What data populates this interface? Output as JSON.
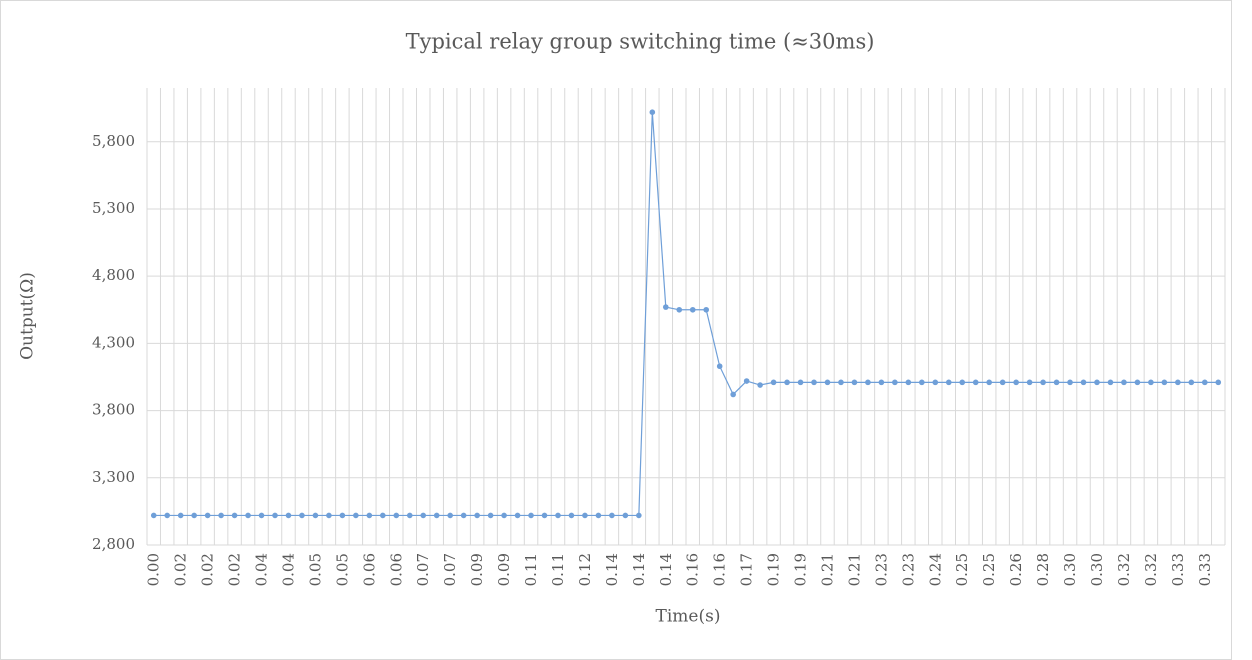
{
  "chart_data": {
    "type": "line",
    "title": "Typical relay group switching time (≈30ms)",
    "x_label": "Time(s)",
    "y_label": "Output(Ω)",
    "categories": [
      "0.00",
      null,
      "0.02",
      null,
      "0.02",
      null,
      "0.02",
      null,
      "0.04",
      null,
      "0.04",
      null,
      "0.05",
      null,
      "0.05",
      null,
      "0.06",
      null,
      "0.06",
      null,
      "0.07",
      null,
      "0.07",
      null,
      "0.09",
      null,
      "0.09",
      null,
      "0.11",
      null,
      "0.11",
      null,
      "0.12",
      null,
      "0.14",
      null,
      "0.14",
      null,
      "0.14",
      null,
      "0.16",
      null,
      "0.16",
      null,
      "0.17",
      null,
      "0.19",
      null,
      "0.19",
      null,
      "0.21",
      null,
      "0.21",
      null,
      "0.23",
      null,
      "0.23",
      null,
      "0.24",
      null,
      "0.25",
      null,
      "0.25",
      null,
      "0.26",
      null,
      "0.28",
      null,
      "0.30",
      null,
      "0.30",
      null,
      "0.32",
      null,
      "0.32",
      null,
      "0.33",
      null,
      "0.33",
      null
    ],
    "series": [
      {
        "name": "Output",
        "color": "#6f9fd8",
        "values": [
          3020,
          3020,
          3020,
          3020,
          3020,
          3020,
          3020,
          3020,
          3020,
          3020,
          3020,
          3020,
          3020,
          3020,
          3020,
          3020,
          3020,
          3020,
          3020,
          3020,
          3020,
          3020,
          3020,
          3020,
          3020,
          3020,
          3020,
          3020,
          3020,
          3020,
          3020,
          3020,
          3020,
          3020,
          3020,
          3020,
          3020,
          6020,
          4570,
          4550,
          4550,
          4550,
          4130,
          3920,
          4020,
          3990,
          4010,
          4010,
          4010,
          4010,
          4010,
          4010,
          4010,
          4010,
          4010,
          4010,
          4010,
          4010,
          4010,
          4010,
          4010,
          4010,
          4010,
          4010,
          4010,
          4010,
          4010,
          4010,
          4010,
          4010,
          4010,
          4010,
          4010,
          4010,
          4010,
          4010,
          4010,
          4010,
          4010,
          4010
        ]
      }
    ],
    "ylim": [
      2800,
      6200
    ],
    "yticks": [
      {
        "value": 2800,
        "label": "2,800"
      },
      {
        "value": 3300,
        "label": "3,300"
      },
      {
        "value": 3800,
        "label": "3,800"
      },
      {
        "value": 4300,
        "label": "4,300"
      },
      {
        "value": 4800,
        "label": "4,800"
      },
      {
        "value": 5300,
        "label": "5,300"
      },
      {
        "value": 5800,
        "label": "5,800"
      }
    ],
    "grid": true
  }
}
